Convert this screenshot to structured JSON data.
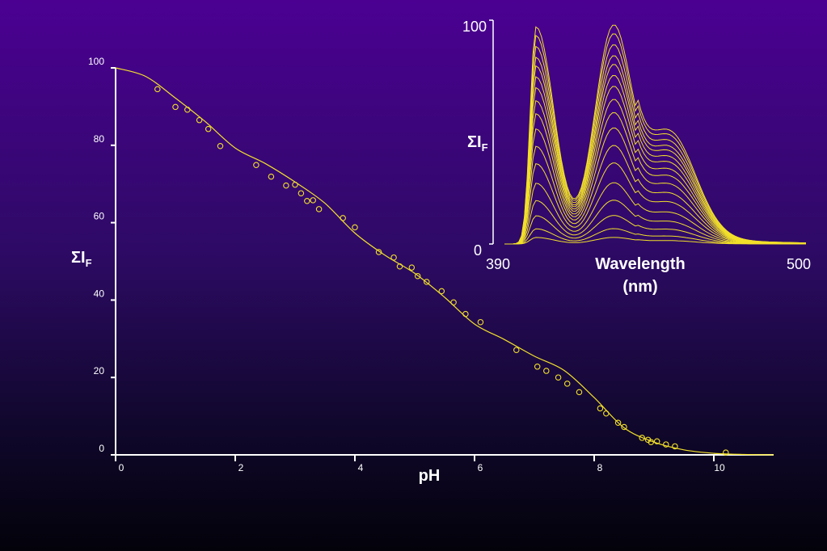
{
  "colors": {
    "curve": "#f2e02a",
    "axis": "#ffffff"
  },
  "chart_data": [
    {
      "type": "scatter",
      "title": "",
      "xlabel": "pH",
      "ylabel": "ΣI",
      "ylabel_sub": "F",
      "xlim": [
        0,
        11
      ],
      "ylim": [
        0,
        100
      ],
      "xticks": [
        "0",
        "2",
        "4",
        "6",
        "8",
        "10"
      ],
      "yticks": [
        "0",
        "20",
        "40",
        "60",
        "80",
        "100"
      ],
      "points": {
        "x": [
          0.7,
          1.0,
          1.2,
          1.4,
          1.55,
          1.75,
          2.35,
          2.6,
          2.85,
          3.0,
          3.1,
          3.2,
          3.3,
          3.4,
          3.8,
          4.0,
          4.4,
          4.65,
          4.75,
          4.95,
          5.05,
          5.2,
          5.45,
          5.65,
          5.85,
          6.1,
          6.7,
          7.05,
          7.2,
          7.4,
          7.55,
          7.75,
          8.1,
          8.2,
          8.4,
          8.5,
          8.8,
          8.9,
          8.95,
          9.05,
          9.2,
          9.35,
          10.2
        ],
        "y": [
          94.5,
          89.9,
          89.2,
          86.5,
          84.2,
          79.8,
          74.9,
          71.9,
          69.6,
          69.8,
          67.6,
          65.6,
          65.8,
          63.5,
          61.2,
          58.8,
          52.4,
          51.0,
          48.7,
          48.4,
          46.2,
          44.7,
          42.3,
          39.4,
          36.4,
          34.3,
          27.1,
          22.8,
          21.7,
          20.0,
          18.4,
          16.2,
          12.0,
          10.7,
          8.3,
          7.2,
          4.4,
          3.9,
          3.3,
          3.5,
          2.7,
          2.2,
          0.6
        ]
      },
      "fit_curve": {
        "x": [
          0,
          0.5,
          1,
          1.5,
          2,
          2.5,
          3,
          3.5,
          4,
          4.5,
          5,
          5.5,
          6,
          6.5,
          7,
          7.5,
          8,
          8.5,
          9,
          9.5,
          10,
          10.5,
          11
        ],
        "y": [
          100,
          97.8,
          92.2,
          86.1,
          79.3,
          75.3,
          70.5,
          65.0,
          57.3,
          51.6,
          46.9,
          40.7,
          33.8,
          29.8,
          25.5,
          21.8,
          14.8,
          7.0,
          3.3,
          1.3,
          0.4,
          0.1,
          0.0
        ]
      }
    },
    {
      "type": "line",
      "title": "",
      "xlabel": "Wavelength (nm)",
      "xlabel_line1": "Wavelength",
      "xlabel_line2": "(nm)",
      "ylabel": "ΣI",
      "ylabel_sub": "F",
      "xlim": [
        390,
        500
      ],
      "ylim": [
        0,
        100
      ],
      "xtick_min": "390",
      "xtick_max": "500",
      "ytick_min": "0",
      "ytick_max": "100",
      "peaks_nm": [
        405,
        432,
        452
      ],
      "series_scales": [
        1.0,
        0.96,
        0.91,
        0.86,
        0.82,
        0.77,
        0.72,
        0.66,
        0.6,
        0.53,
        0.45,
        0.37,
        0.28,
        0.2,
        0.13,
        0.07,
        0.03
      ]
    }
  ]
}
